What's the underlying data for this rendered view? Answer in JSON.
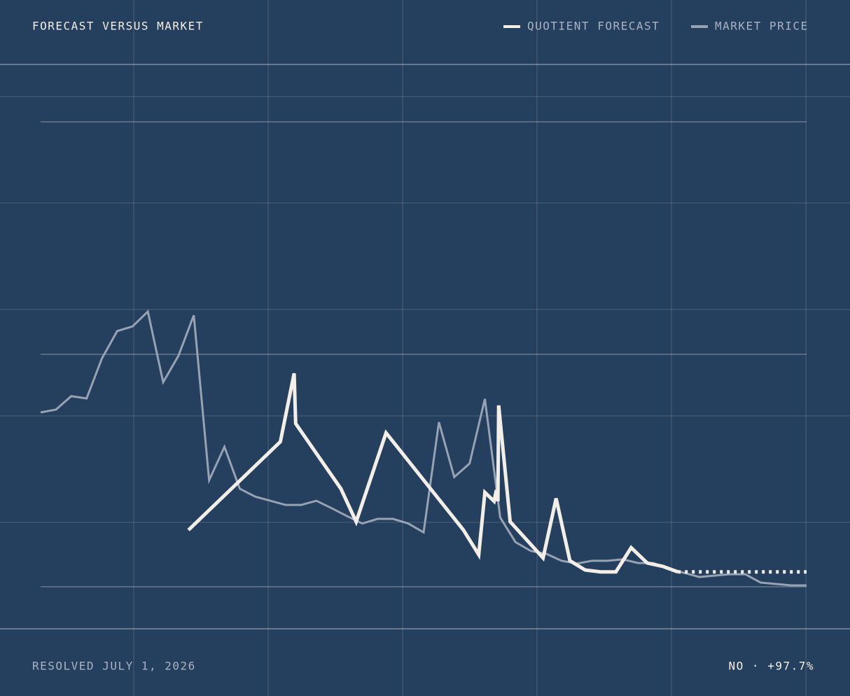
{
  "chart_data": {
    "type": "line",
    "title": "FORECAST VERSUS MARKET",
    "annotations": [
      "RESOLVED JULY 1, 2026",
      "NO · +97.7%"
    ],
    "xlim": [
      0,
      100
    ],
    "ylim": [
      0,
      100
    ],
    "yticks": [
      0,
      50,
      100
    ],
    "grid": true,
    "series": [
      {
        "name": "QUOTIENT FORECAST",
        "color": "#f4efe6",
        "x": [
          19.3,
          31.3,
          33.1,
          33.3,
          39.2,
          41.2,
          45.1,
          55.2,
          57.2,
          58.0,
          59.2,
          59.5,
          59.7,
          59.8,
          61.3,
          65.6,
          67.3,
          69.1,
          71.1,
          73.1,
          75.1,
          77.1,
          79.2,
          81.2,
          83.2
        ],
        "values": [
          12.2,
          31.2,
          45.9,
          35.1,
          21.1,
          14.0,
          33.1,
          12.2,
          6.9,
          20.3,
          18.4,
          20.8,
          18.4,
          39.0,
          14.0,
          6.2,
          19.0,
          5.6,
          3.6,
          3.2,
          3.2,
          8.4,
          5.1,
          4.4,
          3.2
        ]
      },
      {
        "name": "MARKET PRICE",
        "color": "#97a3b3",
        "x": [
          0,
          2,
          4,
          6,
          8,
          10,
          12,
          14,
          16,
          18,
          20,
          22,
          24,
          26,
          28,
          30,
          32,
          34,
          36,
          38,
          40,
          42,
          44,
          46,
          48,
          50,
          52,
          54,
          56,
          58,
          60,
          62,
          64,
          66,
          68,
          70,
          72,
          74,
          76,
          78,
          80,
          82,
          84,
          86,
          88,
          90,
          92,
          94,
          96,
          98,
          100
        ],
        "values": [
          37.5,
          38.1,
          41.0,
          40.5,
          49.1,
          55.0,
          56.0,
          59.2,
          44.0,
          49.7,
          58.4,
          22.9,
          30.1,
          21.1,
          19.4,
          18.5,
          17.6,
          17.6,
          18.5,
          16.9,
          15.2,
          13.6,
          14.6,
          14.6,
          13.6,
          11.7,
          35.4,
          23.6,
          26.5,
          40.4,
          14.9,
          9.6,
          7.7,
          7.1,
          5.6,
          5.0,
          5.6,
          5.6,
          5.9,
          5.1,
          5.1,
          3.8,
          3.0,
          2.1,
          2.4,
          2.7,
          2.7,
          0.9,
          0.6,
          0.3,
          0.3
        ]
      }
    ]
  }
}
